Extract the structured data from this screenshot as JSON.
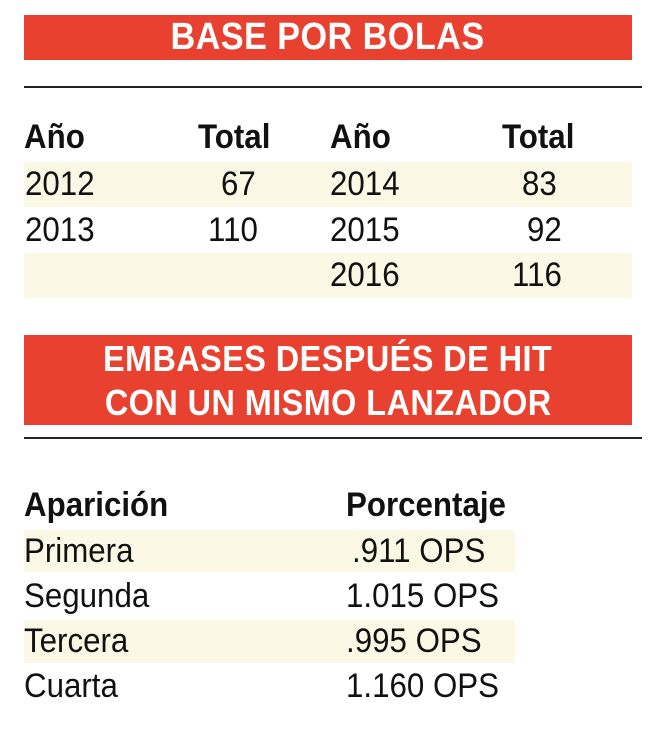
{
  "section1": {
    "title": "BASE POR BOLAS",
    "headers": [
      "Año",
      "Total",
      "Año",
      "Total"
    ],
    "left": [
      {
        "year": "2012",
        "total": "67"
      },
      {
        "year": "2013",
        "total": "110"
      }
    ],
    "right": [
      {
        "year": "2014",
        "total": "83"
      },
      {
        "year": "2015",
        "total": "92"
      },
      {
        "year": "2016",
        "total": "116"
      }
    ]
  },
  "section2": {
    "title_line1": "EMBASES DESPUÉS DE HIT",
    "title_line2": "CON UN MISMO LANZADOR",
    "headers": [
      "Aparición",
      "Porcentaje"
    ],
    "rows": [
      {
        "label": "Primera",
        "value": ".911 OPS"
      },
      {
        "label": "Segunda",
        "value": "1.015 OPS"
      },
      {
        "label": "Tercera",
        "value": ".995 OPS"
      },
      {
        "label": "Cuarta",
        "value": "1.160 OPS"
      }
    ]
  },
  "colors": {
    "accent": "#e8412f",
    "row_highlight": "#fbf9e6"
  }
}
